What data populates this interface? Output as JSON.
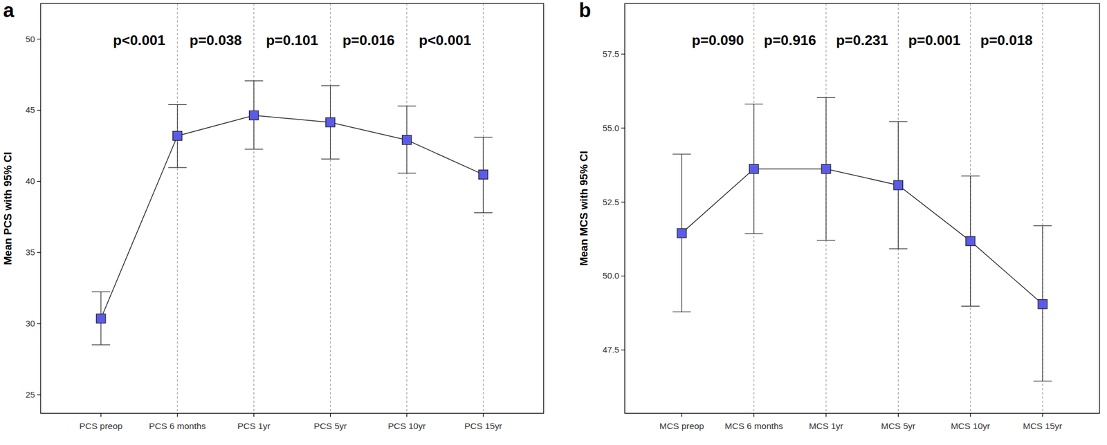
{
  "chart_data": [
    {
      "type": "line",
      "title": "a",
      "y_label": "Mean PCS with 95% CI",
      "categories": [
        "PCS preop",
        "PCS 6 months",
        "PCS 1yr",
        "PCS 5yr",
        "PCS 10yr",
        "PCS 15yr"
      ],
      "series": [
        {
          "color": "#5b5bea",
          "marker": "square",
          "values": [
            30.36,
            43.2,
            44.64,
            44.15,
            42.91,
            40.48
          ],
          "ci_lower": [
            28.52,
            40.97,
            42.26,
            41.57,
            40.58,
            37.8
          ],
          "ci_upper": [
            32.24,
            45.39,
            47.07,
            46.73,
            45.29,
            43.1
          ]
        }
      ],
      "annotations": [
        "p<0.001",
        "p=0.038",
        "p=0.101",
        "p=0.016",
        "p<0.001"
      ],
      "ylim": [
        23.7,
        52.5
      ],
      "yticks": [
        25,
        30,
        35,
        40,
        45,
        50
      ],
      "grid": true
    },
    {
      "type": "line",
      "title": "b",
      "y_label": "Mean MCS with 95% CI",
      "categories": [
        "MCS preop",
        "MCS 6 months",
        "MCS 1yr",
        "MCS 5yr",
        "MCS 10yr",
        "MCS 15yr"
      ],
      "series": [
        {
          "color": "#5b5bea",
          "marker": "square",
          "values": [
            51.45,
            53.62,
            53.62,
            53.07,
            51.18,
            49.05
          ],
          "ci_lower": [
            48.79,
            51.43,
            51.21,
            50.92,
            48.98,
            46.45
          ],
          "ci_upper": [
            54.12,
            55.81,
            56.03,
            55.22,
            53.38,
            51.7
          ]
        }
      ],
      "annotations": [
        "p=0.090",
        "p=0.916",
        "p=0.231",
        "p=0.001",
        "p=0.018"
      ],
      "ylim": [
        45.36,
        59.21
      ],
      "yticks": [
        {
          "value": 47.5,
          "label": "47.5"
        },
        {
          "value": 50,
          "label": "50.0"
        },
        {
          "value": 52.5,
          "label": "52.5"
        },
        {
          "value": 55,
          "label": "55.0"
        },
        {
          "value": 57.5,
          "label": "57.5"
        }
      ],
      "grid": true
    }
  ]
}
